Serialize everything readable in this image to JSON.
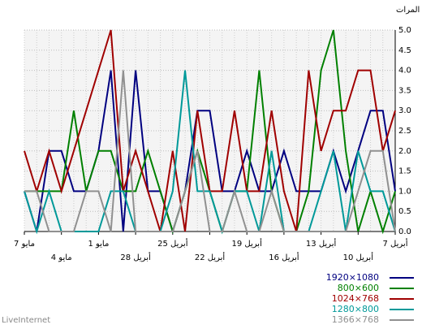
{
  "chart_data": {
    "type": "line",
    "y_label": "المرات",
    "footer": "LiveInternet",
    "categories": [
      "7 مايو",
      null,
      null,
      "4 مايو",
      null,
      null,
      "1 مايو",
      null,
      null,
      "28 أبريل",
      null,
      null,
      "25 أبريل",
      null,
      null,
      "22 أبريل",
      null,
      null,
      "19 أبريل",
      null,
      null,
      "16 أبريل",
      null,
      null,
      "13 أبريل",
      null,
      null,
      "10 أبريل",
      null,
      null,
      "7 أبريل"
    ],
    "ylim": [
      0,
      5
    ],
    "yticks": [
      {
        "value": 0,
        "label": "0.0"
      },
      0.5,
      {
        "value": 1,
        "label": "1.0"
      },
      1.5,
      {
        "value": 2,
        "label": "2.0"
      },
      2.5,
      {
        "value": 3,
        "label": "3.0"
      },
      3.5,
      {
        "value": 4,
        "label": "4.0"
      },
      4.5,
      {
        "value": 5,
        "label": "5.0"
      }
    ],
    "grid": true,
    "series": [
      {
        "name": "1920×1080",
        "color": "#000080",
        "values": [
          1,
          0,
          2,
          2,
          1,
          1,
          2,
          4,
          0,
          4,
          1,
          1,
          0,
          1,
          3,
          3,
          1,
          1,
          2,
          1,
          1,
          2,
          1,
          1,
          1,
          2,
          1,
          2,
          3,
          3,
          1
        ]
      },
      {
        "name": "800×600",
        "color": "#008000",
        "values": [
          1,
          1,
          1,
          1,
          3,
          1,
          2,
          2,
          1,
          1,
          2,
          1,
          0,
          1,
          2,
          1,
          0,
          1,
          1,
          4,
          1,
          0,
          0,
          1,
          4,
          5,
          2,
          0,
          1,
          0,
          1
        ]
      },
      {
        "name": "1024×768",
        "color": "#a00000",
        "values": [
          2,
          1,
          2,
          1,
          2,
          3,
          4,
          5,
          1,
          2,
          1,
          0,
          2,
          0,
          3,
          1,
          1,
          3,
          1,
          1,
          3,
          1,
          0,
          4,
          2,
          3,
          3,
          4,
          4,
          2,
          3
        ]
      },
      {
        "name": "1280×800",
        "color": "#009999",
        "values": [
          1,
          0,
          1,
          0,
          0,
          0,
          0,
          1,
          1,
          0,
          0,
          0,
          1,
          4,
          1,
          1,
          0,
          1,
          1,
          0,
          2,
          0,
          0,
          0,
          1,
          2,
          0,
          2,
          1,
          1,
          0
        ]
      },
      {
        "name": "1366×768",
        "color": "#909090",
        "values": [
          1,
          1,
          0,
          0,
          0,
          1,
          1,
          0,
          4,
          0,
          0,
          0,
          0,
          1,
          2,
          0,
          0,
          1,
          0,
          0,
          1,
          0,
          0,
          0,
          0,
          0,
          0,
          1,
          2,
          2,
          0
        ]
      }
    ]
  }
}
